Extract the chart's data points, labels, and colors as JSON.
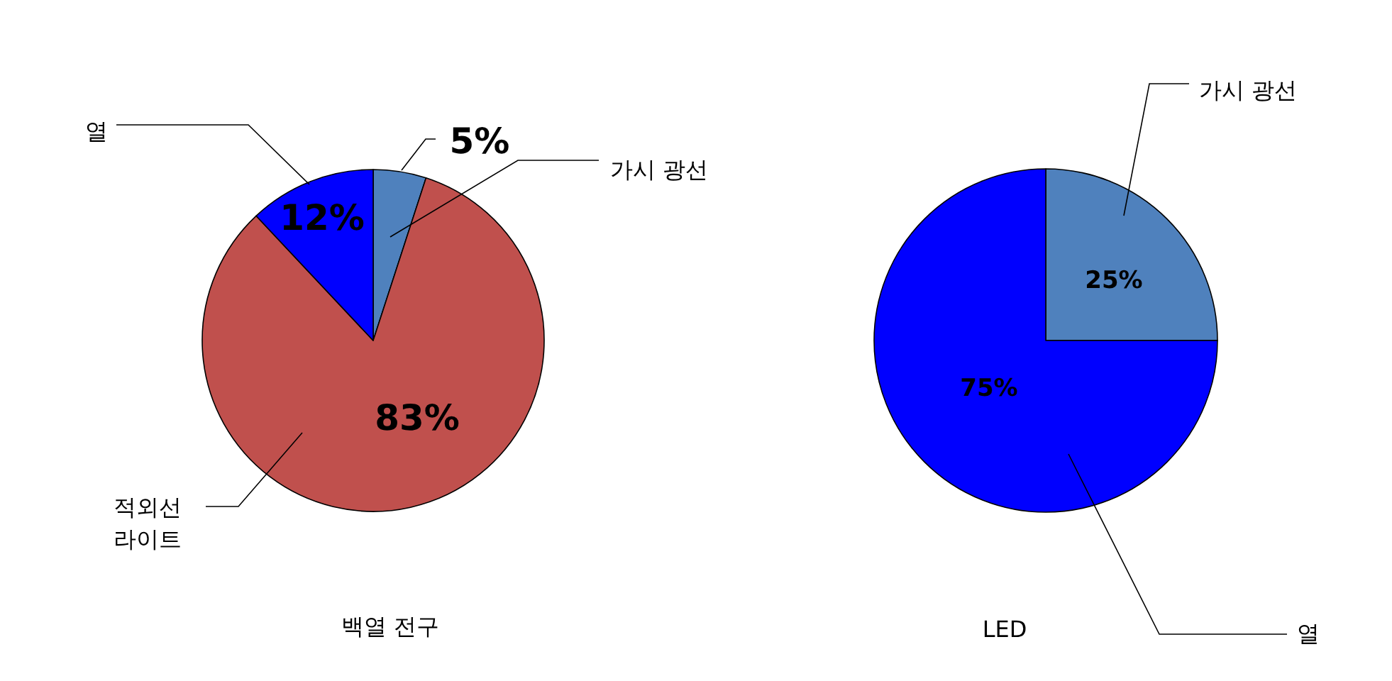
{
  "chart_data": [
    {
      "type": "pie",
      "title": "백열 전구",
      "categories": [
        "가시 광선",
        "적외선 라이트",
        "열"
      ],
      "values": [
        5,
        83,
        12
      ],
      "colors": [
        "#4f81bd",
        "#c0504d",
        "#0000ff"
      ],
      "value_labels": [
        "5%",
        "83%",
        "12%"
      ]
    },
    {
      "type": "pie",
      "title": "LED",
      "categories": [
        "가시 광선",
        "열"
      ],
      "values": [
        25,
        75
      ],
      "colors": [
        "#4f81bd",
        "#0000ff"
      ],
      "value_labels": [
        "25%",
        "75%"
      ]
    }
  ]
}
